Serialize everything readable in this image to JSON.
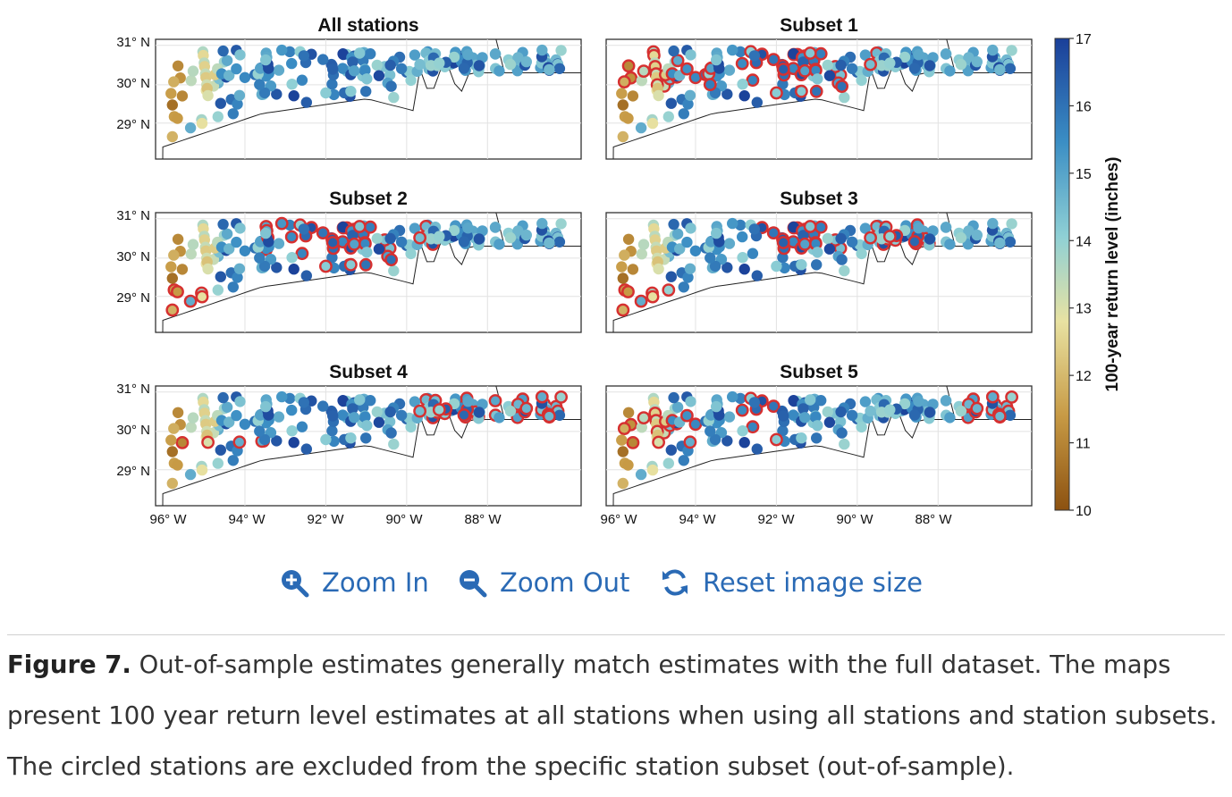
{
  "figure": {
    "panels": [
      {
        "title": "All stations"
      },
      {
        "title": "Subset 1"
      },
      {
        "title": "Subset 2"
      },
      {
        "title": "Subset 3"
      },
      {
        "title": "Subset 4"
      },
      {
        "title": "Subset 5"
      }
    ],
    "y_ticks": [
      "31° N",
      "30° N",
      "29° N"
    ],
    "x_ticks": [
      "96° W",
      "94° W",
      "92° W",
      "90° W",
      "88° W"
    ],
    "colorbar": {
      "label": "100-year return level (inches)",
      "ticks": [
        "17",
        "16",
        "15",
        "14",
        "13",
        "12",
        "11",
        "10"
      ],
      "range": [
        10,
        17
      ],
      "colors": [
        "#8c5110",
        "#c79a45",
        "#e8e2a2",
        "#8fd0d5",
        "#3b8ec4",
        "#1a3f99"
      ]
    },
    "excluded_marker_color": "#d63030"
  },
  "toolbar": {
    "zoom_in": "Zoom In",
    "zoom_out": "Zoom Out",
    "reset": "Reset image size"
  },
  "caption": {
    "label": "Figure 7.",
    "text": " Out-of-sample estimates generally match estimates with the full dataset. The maps present 100 year return level estimates at all stations when using all stations and station subsets. The circled stations are excluded from the specific station subset (out-of-sample)."
  }
}
